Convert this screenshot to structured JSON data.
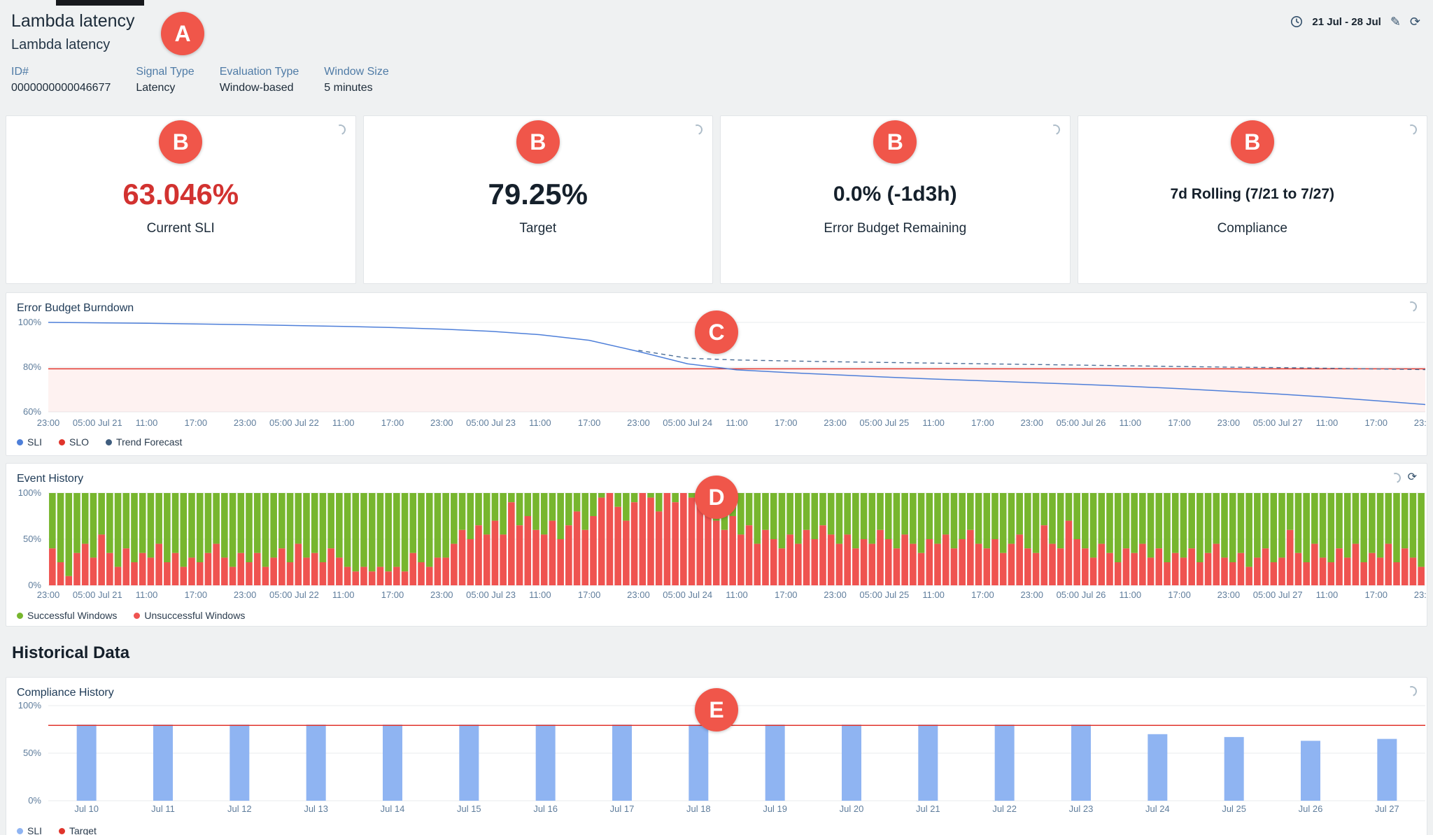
{
  "header": {
    "title": "Lambda latency",
    "subtitle": "Lambda latency",
    "meta": [
      {
        "label": "ID#",
        "value": "0000000000046677"
      },
      {
        "label": "Signal Type",
        "value": "Latency"
      },
      {
        "label": "Evaluation Type",
        "value": "Window-based"
      },
      {
        "label": "Window Size",
        "value": "5 minutes"
      }
    ],
    "date_range": "21 Jul - 28 Jul"
  },
  "stat_cards": [
    {
      "value": "63.046%",
      "label": "Current SLI",
      "value_color": "#d23230"
    },
    {
      "value": "79.25%",
      "label": "Target"
    },
    {
      "value": "0.0% (-1d3h)",
      "label": "Error Budget Remaining"
    },
    {
      "value": "7d Rolling (7/21 to 7/27)",
      "label": "Compliance"
    }
  ],
  "sections": {
    "historical_heading": "Historical Data"
  },
  "markers": {
    "a": "A",
    "b": "B",
    "c": "C",
    "d": "D",
    "e": "E"
  },
  "colors": {
    "sli_line": "#4e7fd9",
    "slo_line": "#e0342b",
    "forecast_line": "#4a6d96",
    "success_bar": "#77b62e",
    "fail_bar": "#ef5350",
    "compliance_bar": "#8fb4f2",
    "stat_red": "#d23230",
    "marker_red": "#f0564a"
  },
  "chart_data": [
    {
      "id": "error_budget_burndown",
      "type": "line",
      "title": "Error Budget Burndown",
      "ylim": [
        60,
        100
      ],
      "yticks": [
        100,
        80,
        60
      ],
      "x_labels": [
        "23:00",
        "05:00 Jul 21",
        "11:00",
        "17:00",
        "23:00",
        "05:00 Jul 22",
        "11:00",
        "17:00",
        "23:00",
        "05:00 Jul 23",
        "11:00",
        "17:00",
        "23:00",
        "05:00 Jul 24",
        "11:00",
        "17:00",
        "23:00",
        "05:00 Jul 25",
        "11:00",
        "17:00",
        "23:00",
        "05:00 Jul 26",
        "11:00",
        "17:00",
        "23:00",
        "05:00 Jul 27",
        "11:00",
        "17:00",
        "23:00"
      ],
      "shade_color": "rgba(239,83,80,0.08)",
      "series": [
        {
          "name": "SLI",
          "color": "#4e7fd9",
          "values": [
            100,
            99.8,
            99.6,
            99.3,
            99.0,
            98.6,
            98.2,
            97.7,
            97.0,
            96.0,
            94.5,
            92.0,
            87.0,
            81.5,
            78.8,
            77.6,
            76.6,
            75.6,
            74.7,
            73.9,
            73.1,
            72.3,
            71.4,
            70.4,
            69.2,
            68.0,
            66.6,
            65.0,
            63.3
          ]
        },
        {
          "name": "SLO",
          "color": "#e0342b",
          "constant": 79.25
        },
        {
          "name": "Trend Forecast",
          "color": "#4a6d96",
          "dashed": true,
          "values": [
            null,
            null,
            null,
            null,
            null,
            null,
            null,
            null,
            null,
            null,
            null,
            null,
            87.5,
            84.0,
            83.2,
            82.8,
            82.4,
            82.1,
            81.8,
            81.5,
            81.2,
            80.9,
            80.6,
            80.3,
            80.0,
            79.8,
            79.5,
            79.2,
            78.9
          ]
        }
      ]
    },
    {
      "id": "event_history",
      "type": "stacked_bar",
      "title": "Event History",
      "yticks": [
        100,
        50,
        0
      ],
      "x_labels": [
        "23:00",
        "05:00 Jul 21",
        "11:00",
        "17:00",
        "23:00",
        "05:00 Jul 22",
        "11:00",
        "17:00",
        "23:00",
        "05:00 Jul 23",
        "11:00",
        "17:00",
        "23:00",
        "05:00 Jul 24",
        "11:00",
        "17:00",
        "23:00",
        "05:00 Jul 25",
        "11:00",
        "17:00",
        "23:00",
        "05:00 Jul 26",
        "11:00",
        "17:00",
        "23:00",
        "05:00 Jul 27",
        "11:00",
        "17:00",
        "23:00"
      ],
      "legend": [
        "Successful Windows",
        "Unsuccessful Windows"
      ],
      "colors": {
        "success": "#77b62e",
        "fail": "#ef5350"
      },
      "unsuccessful_pct": [
        40,
        25,
        10,
        35,
        45,
        30,
        55,
        35,
        20,
        40,
        25,
        35,
        30,
        45,
        25,
        35,
        20,
        30,
        25,
        35,
        45,
        30,
        20,
        35,
        25,
        35,
        20,
        30,
        40,
        25,
        45,
        30,
        35,
        25,
        40,
        30,
        20,
        15,
        20,
        15,
        20,
        15,
        20,
        15,
        35,
        25,
        20,
        30,
        30,
        45,
        60,
        50,
        65,
        55,
        70,
        55,
        90,
        65,
        75,
        60,
        55,
        70,
        50,
        65,
        80,
        60,
        75,
        95,
        100,
        85,
        70,
        90,
        100,
        95,
        80,
        100,
        90,
        100,
        95,
        100,
        85,
        70,
        60,
        75,
        55,
        65,
        45,
        60,
        50,
        40,
        55,
        45,
        60,
        50,
        65,
        55,
        45,
        55,
        40,
        50,
        45,
        60,
        50,
        40,
        55,
        45,
        35,
        50,
        45,
        55,
        40,
        50,
        60,
        45,
        40,
        50,
        35,
        45,
        55,
        40,
        35,
        65,
        45,
        40,
        70,
        50,
        40,
        30,
        45,
        35,
        25,
        40,
        35,
        45,
        30,
        40,
        25,
        35,
        30,
        40,
        25,
        35,
        45,
        30,
        25,
        35,
        20,
        30,
        40,
        25,
        30,
        60,
        35,
        25,
        45,
        30,
        25,
        40,
        30,
        45,
        25,
        35,
        30,
        45,
        25,
        40,
        30,
        20
      ]
    },
    {
      "id": "compliance_history",
      "type": "bar",
      "title": "Compliance History",
      "yticks": [
        100,
        50,
        0
      ],
      "categories": [
        "Jul 10",
        "Jul 11",
        "Jul 12",
        "Jul 13",
        "Jul 14",
        "Jul 15",
        "Jul 16",
        "Jul 17",
        "Jul 18",
        "Jul 19",
        "Jul 20",
        "Jul 21",
        "Jul 22",
        "Jul 23",
        "Jul 24",
        "Jul 25",
        "Jul 26",
        "Jul 27"
      ],
      "values": [
        80,
        80,
        80,
        80,
        80,
        80,
        80,
        80,
        80,
        80,
        80,
        80,
        80,
        80,
        70,
        67,
        63,
        65
      ],
      "target": 79.25,
      "colors": {
        "bar": "#8fb4f2",
        "target": "#e0342b"
      },
      "legend": [
        "SLI",
        "Target"
      ]
    }
  ]
}
